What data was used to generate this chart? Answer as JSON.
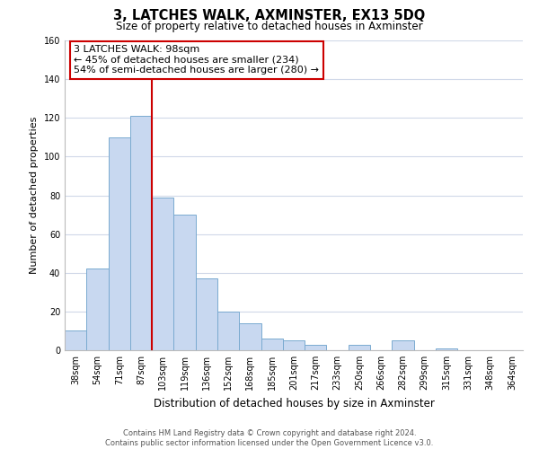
{
  "title": "3, LATCHES WALK, AXMINSTER, EX13 5DQ",
  "subtitle": "Size of property relative to detached houses in Axminster",
  "xlabel": "Distribution of detached houses by size in Axminster",
  "ylabel": "Number of detached properties",
  "bar_labels": [
    "38sqm",
    "54sqm",
    "71sqm",
    "87sqm",
    "103sqm",
    "119sqm",
    "136sqm",
    "152sqm",
    "168sqm",
    "185sqm",
    "201sqm",
    "217sqm",
    "233sqm",
    "250sqm",
    "266sqm",
    "282sqm",
    "299sqm",
    "315sqm",
    "331sqm",
    "348sqm",
    "364sqm"
  ],
  "bar_heights": [
    10,
    42,
    110,
    121,
    79,
    70,
    37,
    20,
    14,
    6,
    5,
    3,
    0,
    3,
    0,
    5,
    0,
    1,
    0,
    0,
    0
  ],
  "bar_color": "#c8d8f0",
  "bar_edge_color": "#7aaad0",
  "vline_x_idx": 3.5,
  "vline_color": "#cc0000",
  "annotation_line1": "3 LATCHES WALK: 98sqm",
  "annotation_line2": "← 45% of detached houses are smaller (234)",
  "annotation_line3": "54% of semi-detached houses are larger (280) →",
  "annotation_box_color": "#ffffff",
  "annotation_box_edge": "#cc0000",
  "ylim": [
    0,
    160
  ],
  "yticks": [
    0,
    20,
    40,
    60,
    80,
    100,
    120,
    140,
    160
  ],
  "footer_line1": "Contains HM Land Registry data © Crown copyright and database right 2024.",
  "footer_line2": "Contains public sector information licensed under the Open Government Licence v3.0.",
  "background_color": "#ffffff",
  "grid_color": "#d0d8e8",
  "title_fontsize": 10.5,
  "subtitle_fontsize": 8.5,
  "xlabel_fontsize": 8.5,
  "ylabel_fontsize": 8,
  "tick_fontsize": 7,
  "annotation_fontsize": 8,
  "footer_fontsize": 6
}
